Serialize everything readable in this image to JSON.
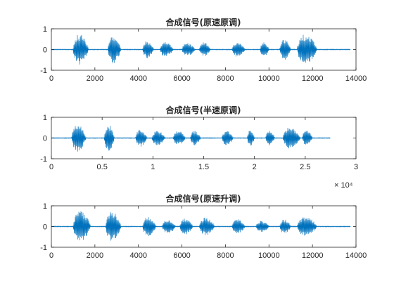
{
  "figure": {
    "background": "#ffffff",
    "line_color": "#0072BD",
    "axes_color": "#262626"
  },
  "chart_data": [
    {
      "type": "line",
      "title": "合成信号(原速原调)",
      "xlim": [
        0,
        14000
      ],
      "ylim": [
        -1,
        1
      ],
      "xticks": [
        0,
        2000,
        4000,
        6000,
        8000,
        10000,
        12000,
        14000
      ],
      "xtick_labels": [
        "0",
        "2000",
        "4000",
        "6000",
        "8000",
        "10000",
        "12000",
        "14000"
      ],
      "yticks": [
        -1,
        0,
        1
      ],
      "ytick_labels": [
        "-1",
        "0",
        "1"
      ],
      "exponent_label": "",
      "x_end": 13750,
      "segments": [
        {
          "x0": 1000,
          "x1": 1700,
          "amp": 0.95
        },
        {
          "x0": 2600,
          "x1": 3200,
          "amp": 0.85
        },
        {
          "x0": 4200,
          "x1": 4700,
          "amp": 0.55
        },
        {
          "x0": 5000,
          "x1": 5600,
          "amp": 0.45
        },
        {
          "x0": 6000,
          "x1": 6600,
          "amp": 0.4
        },
        {
          "x0": 6800,
          "x1": 7300,
          "amp": 0.45
        },
        {
          "x0": 8300,
          "x1": 8900,
          "amp": 0.45
        },
        {
          "x0": 9600,
          "x1": 10000,
          "amp": 0.45
        },
        {
          "x0": 10500,
          "x1": 11000,
          "amp": 0.65
        },
        {
          "x0": 11300,
          "x1": 12200,
          "amp": 0.95
        }
      ]
    },
    {
      "type": "line",
      "title": "合成信号(半速原调)",
      "xlim": [
        0,
        30000
      ],
      "ylim": [
        -1,
        1
      ],
      "xticks": [
        0,
        5000,
        10000,
        15000,
        20000,
        25000,
        30000
      ],
      "xtick_labels": [
        "0",
        "0.5",
        "1",
        "1.5",
        "2",
        "2.5",
        "3"
      ],
      "yticks": [
        -1,
        0,
        1
      ],
      "ytick_labels": [
        "-1",
        "0",
        "1"
      ],
      "exponent_label": "× 10⁴",
      "x_end": 27500,
      "segments": [
        {
          "x0": 2000,
          "x1": 3400,
          "amp": 0.85
        },
        {
          "x0": 5200,
          "x1": 6200,
          "amp": 0.85
        },
        {
          "x0": 8300,
          "x1": 9400,
          "amp": 0.55
        },
        {
          "x0": 9900,
          "x1": 11200,
          "amp": 0.45
        },
        {
          "x0": 12000,
          "x1": 13200,
          "amp": 0.45
        },
        {
          "x0": 13700,
          "x1": 14700,
          "amp": 0.45
        },
        {
          "x0": 16800,
          "x1": 17900,
          "amp": 0.45
        },
        {
          "x0": 19300,
          "x1": 20000,
          "amp": 0.5
        },
        {
          "x0": 21100,
          "x1": 22000,
          "amp": 0.45
        },
        {
          "x0": 22800,
          "x1": 24500,
          "amp": 0.65
        },
        {
          "x0": 24700,
          "x1": 25700,
          "amp": 0.45
        }
      ]
    },
    {
      "type": "line",
      "title": "合成信号(原速升调)",
      "xlim": [
        0,
        14000
      ],
      "ylim": [
        -1,
        1
      ],
      "xticks": [
        0,
        2000,
        4000,
        6000,
        8000,
        10000,
        12000,
        14000
      ],
      "xtick_labels": [
        "0",
        "2000",
        "4000",
        "6000",
        "8000",
        "10000",
        "12000",
        "14000"
      ],
      "yticks": [
        -1,
        0,
        1
      ],
      "ytick_labels": [
        "-1",
        "0",
        "1"
      ],
      "exponent_label": "",
      "x_end": 13750,
      "segments": [
        {
          "x0": 1000,
          "x1": 1800,
          "amp": 0.95
        },
        {
          "x0": 2500,
          "x1": 3200,
          "amp": 0.95
        },
        {
          "x0": 4200,
          "x1": 4800,
          "amp": 0.6
        },
        {
          "x0": 5100,
          "x1": 5700,
          "amp": 0.45
        },
        {
          "x0": 5900,
          "x1": 6500,
          "amp": 0.5
        },
        {
          "x0": 6800,
          "x1": 7500,
          "amp": 0.55
        },
        {
          "x0": 8300,
          "x1": 8900,
          "amp": 0.45
        },
        {
          "x0": 9400,
          "x1": 10000,
          "amp": 0.35
        },
        {
          "x0": 10500,
          "x1": 11000,
          "amp": 0.45
        },
        {
          "x0": 11300,
          "x1": 12200,
          "amp": 0.6
        }
      ]
    }
  ]
}
